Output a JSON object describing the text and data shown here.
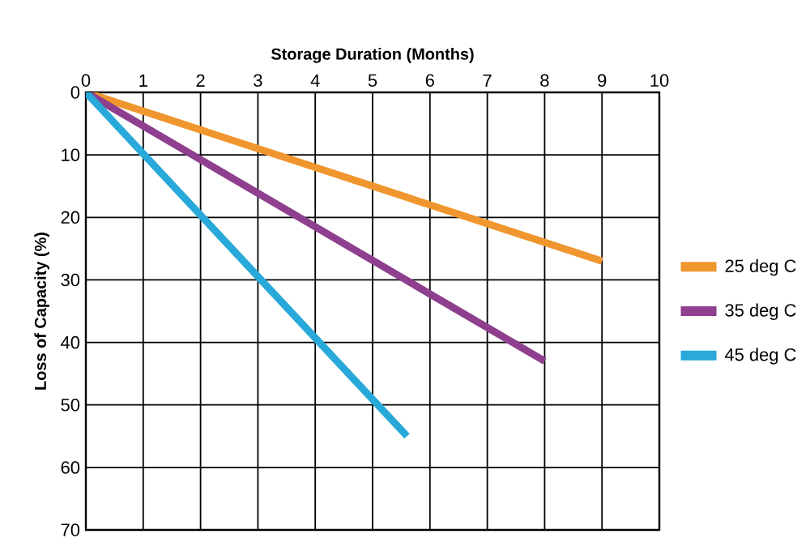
{
  "chart_data": {
    "type": "line",
    "xlabel": "Storage Duration (Months)",
    "ylabel": "Loss of Capacity (%)",
    "xlim": [
      0,
      10
    ],
    "xticks": [
      0,
      1,
      2,
      3,
      4,
      5,
      6,
      7,
      8,
      9,
      10
    ],
    "ylim": [
      70,
      0
    ],
    "yticks": [
      0,
      10,
      20,
      30,
      40,
      50,
      60,
      70
    ],
    "grid": true,
    "legend": "right",
    "marker": "none",
    "line_style": "solid",
    "series": [
      {
        "name": "25 deg C",
        "color": "#f0962e",
        "x": [
          0,
          9
        ],
        "values": [
          0,
          27
        ]
      },
      {
        "name": "35 deg C",
        "color": "#8e3f8e",
        "x": [
          0,
          8
        ],
        "values": [
          0,
          43
        ]
      },
      {
        "name": "45 deg C",
        "color": "#29a9d9",
        "x": [
          0,
          5.6
        ],
        "values": [
          0,
          55
        ]
      }
    ]
  }
}
